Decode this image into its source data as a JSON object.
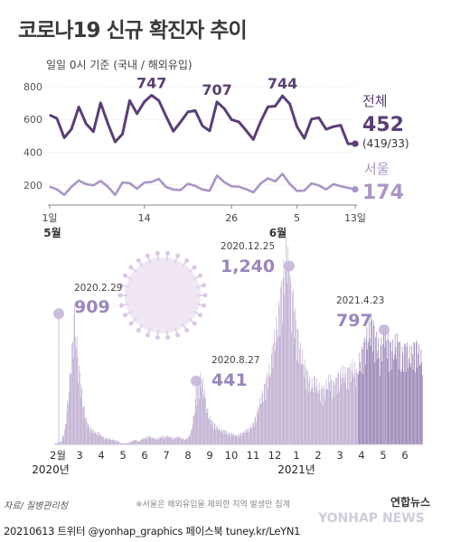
{
  "title": "코로나19 신규 확진자 추이",
  "subtitle": "일일 0시 기준 (국내 / 해외유입)",
  "colors": {
    "total": "#5a3f76",
    "seoul": "#a995c4",
    "bar": "#b8a6cc",
    "bar_dark": "#8e78ad",
    "axis": "#888888",
    "peak_dot": "#c3b3d9"
  },
  "chart_data": [
    {
      "type": "line",
      "title": "",
      "x_tick_labels": [
        "1일",
        "14",
        "26",
        "5",
        "13일"
      ],
      "x_tick_index": [
        0,
        13,
        25,
        34,
        42
      ],
      "month_labels": [
        "5월",
        "6월"
      ],
      "month_index": [
        0,
        31
      ],
      "yticks": [
        200,
        400,
        600,
        800
      ],
      "ylim": [
        100,
        860
      ],
      "series": [
        {
          "name": "전체",
          "values": [
            627,
            606,
            488,
            541,
            676,
            574,
            525,
            701,
            574,
            463,
            511,
            715,
            635,
            707,
            747,
            715,
            619,
            528,
            585,
            646,
            654,
            561,
            530,
            707,
            666,
            599,
            585,
            533,
            478,
            587,
            677,
            681,
            744,
            695,
            556,
            485,
            602,
            610,
            540,
            556,
            565,
            452,
            452
          ],
          "callouts": [
            {
              "index": 14,
              "label": "747"
            },
            {
              "index": 23,
              "label": "707"
            },
            {
              "index": 32,
              "label": "744"
            }
          ],
          "last_label": "452",
          "last_sub": "(419/33)"
        },
        {
          "name": "서울",
          "values": [
            190,
            173,
            140,
            190,
            228,
            206,
            198,
            225,
            190,
            140,
            215,
            212,
            177,
            215,
            219,
            237,
            188,
            172,
            170,
            208,
            195,
            172,
            165,
            258,
            218,
            192,
            190,
            175,
            155,
            209,
            241,
            222,
            268,
            207,
            164,
            166,
            210,
            198,
            173,
            205,
            193,
            183,
            174
          ],
          "last_label": "174"
        }
      ]
    },
    {
      "type": "bar",
      "title": "",
      "x_tick_labels": [
        "2월",
        "3",
        "4",
        "5",
        "6",
        "7",
        "8",
        "9",
        "10",
        "11",
        "12",
        "1",
        "2",
        "3",
        "4",
        "5",
        "6"
      ],
      "year_labels": [
        "2020년",
        "2021년"
      ],
      "ylim": [
        0,
        1350
      ],
      "callouts": [
        {
          "date": "2020.2.29",
          "value": "909"
        },
        {
          "date": "2020.8.27",
          "value": "441"
        },
        {
          "date": "2020.12.25",
          "value": "1,240"
        },
        {
          "date": "2021.4.23",
          "value": "797"
        }
      ],
      "monthly_levels": [
        [
          5,
          10,
          20,
          100,
          320,
          600,
          909
        ],
        [
          700,
          500,
          420,
          300,
          200,
          150,
          120,
          100,
          90,
          80,
          70
        ],
        [
          80,
          60,
          45,
          40,
          35,
          30,
          25,
          20
        ],
        [
          10,
          8,
          8,
          10,
          15,
          25,
          30,
          20,
          25
        ],
        [
          30,
          40,
          45,
          50,
          45,
          40,
          35,
          45,
          50
        ],
        [
          45,
          50,
          55,
          45,
          40,
          45,
          50,
          40,
          35
        ],
        [
          30,
          40,
          50,
          80,
          150,
          250,
          330,
          400,
          441,
          350,
          300
        ],
        [
          250,
          180,
          150,
          130,
          110,
          100,
          90,
          85,
          80
        ],
        [
          75,
          70,
          65,
          60,
          60,
          70,
          80,
          90,
          100
        ],
        [
          110,
          120,
          150,
          200,
          250,
          300,
          350,
          400,
          450,
          500
        ],
        [
          550,
          650,
          700,
          800,
          900,
          1000,
          1100,
          1240,
          1150,
          1000,
          950
        ],
        [
          900,
          800,
          700,
          600,
          550,
          500,
          450,
          400,
          380,
          400
        ],
        [
          400,
          380,
          350,
          340,
          360,
          400,
          420,
          380,
          390
        ],
        [
          420,
          440,
          450,
          460,
          450,
          470,
          480,
          500,
          470,
          440
        ],
        [
          500,
          550,
          600,
          650,
          700,
          720,
          797,
          700,
          650,
          600
        ],
        [
          600,
          650,
          700,
          680,
          640,
          600,
          620,
          660,
          640,
          600
        ],
        [
          560,
          600,
          620,
          580,
          560,
          600,
          640,
          600,
          560,
          540
        ]
      ]
    }
  ],
  "footer": {
    "source": "자료/ 질병관리청",
    "note": "※서울은 해외유입을 제외한 지역 발생만 집계",
    "id_line": "20210613 트위터 @yonhap_graphics  페이스북 tuney.kr/LeYN1",
    "logo": "연합뉴스",
    "watermark": "YONHAP NEWS"
  }
}
